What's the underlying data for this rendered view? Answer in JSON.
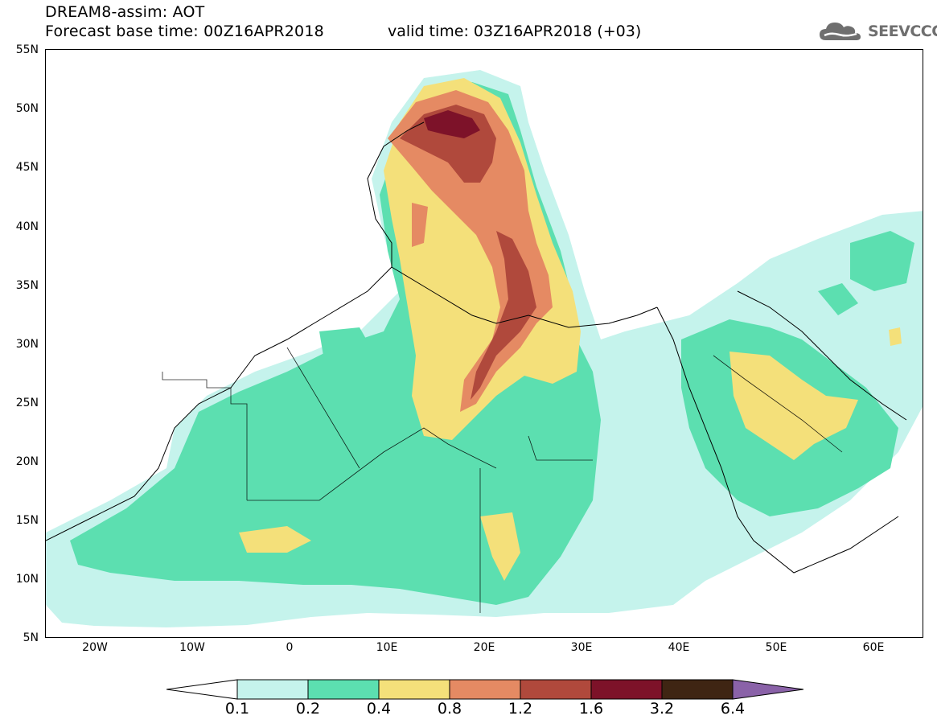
{
  "header": {
    "line1": "DREAM8-assim: AOT",
    "line2_base": "Forecast base time: 00Z16APR2018",
    "line2_valid": "valid time: 03Z16APR2018 (+03)"
  },
  "logo": {
    "icon": "cloud-icon",
    "text": "SEEVCCC",
    "color": "#6f6f6f"
  },
  "map": {
    "extent": {
      "lon_min": -25,
      "lon_max": 65,
      "lat_min": 5,
      "lat_max": 55
    },
    "lat_labels": [
      "55N",
      "50N",
      "45N",
      "40N",
      "35N",
      "30N",
      "25N",
      "20N",
      "15N",
      "10N",
      "5N"
    ],
    "lon_labels": [
      "20W",
      "10W",
      "0",
      "10E",
      "20E",
      "30E",
      "40E",
      "50E",
      "60E"
    ]
  },
  "colorbar": {
    "levels": [
      "0.1",
      "0.2",
      "0.4",
      "0.8",
      "1.2",
      "1.6",
      "3.2",
      "6.4"
    ],
    "colors": [
      "#c5f3ec",
      "#5cdfb0",
      "#f4e07a",
      "#e58a63",
      "#b0493c",
      "#7d1229",
      "#3f2513",
      "#8a62a8"
    ],
    "under_color": "#ffffff"
  }
}
